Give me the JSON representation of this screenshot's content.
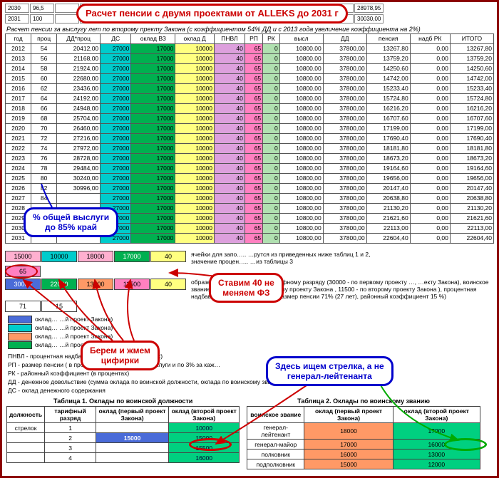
{
  "colors": {
    "dc_col": "#00cccc",
    "okladvz_col": "#00b050",
    "okladd_col": "#ffff80",
    "pnvl_col": "#dda0dd",
    "rp_col": "#ff80c0",
    "rk_col": "#b0e0b0",
    "vysl_col": "#ffffff",
    "dd_col": "#ffffff",
    "input_green": "#00b050",
    "input_cyan": "#00cccc",
    "input_pink": "#ffb0d0",
    "input_yellow": "#ffff80",
    "ref_blue": "#4a6bd8",
    "ref_green": "#00b050",
    "ref_orange": "#ff9966",
    "ref_pink": "#ff80c0"
  },
  "top_cells": [
    "2030",
    "96,5",
    "",
    "",
    "",
    "",
    "",
    "",
    "",
    "",
    "",
    "",
    "",
    "00",
    "28978,95"
  ],
  "top_cells2": [
    "2031",
    "100",
    "",
    "",
    "",
    "",
    "",
    "",
    "",
    "",
    "",
    "",
    "",
    "00",
    "30030,00"
  ],
  "subtitle": "Расчет пенсии за выслугу лет по второму пректу Закона (с коэффициентом 54% ДД и с 2013 года увеличение коэффициента на 2%)",
  "headers": [
    "год",
    "проц",
    "ДД*проц",
    "ДС",
    "оклад ВЗ",
    "оклад Д",
    "ПНВЛ",
    "РП",
    "РК",
    "высл",
    "ДД",
    "пенсия",
    "надб РК",
    "ИТОГО"
  ],
  "rows": [
    {
      "y": "2012",
      "p": "54",
      "dp": "20412,00",
      "dc": "27000",
      "vz": "17000",
      "od": "10000",
      "pn": "40",
      "rp": "65",
      "rk": "0",
      "vy": "10800,00",
      "dd": "37800,00",
      "pe": "13267,80",
      "nr": "0,00",
      "it": "13267,80"
    },
    {
      "y": "2013",
      "p": "56",
      "dp": "21168,00",
      "dc": "27000",
      "vz": "17000",
      "od": "10000",
      "pn": "40",
      "rp": "65",
      "rk": "0",
      "vy": "10800,00",
      "dd": "37800,00",
      "pe": "13759,20",
      "nr": "0,00",
      "it": "13759,20"
    },
    {
      "y": "2014",
      "p": "58",
      "dp": "21924,00",
      "dc": "27000",
      "vz": "17000",
      "od": "10000",
      "pn": "40",
      "rp": "65",
      "rk": "0",
      "vy": "10800,00",
      "dd": "37800,00",
      "pe": "14250,60",
      "nr": "0,00",
      "it": "14250,60"
    },
    {
      "y": "2015",
      "p": "60",
      "dp": "22680,00",
      "dc": "27000",
      "vz": "17000",
      "od": "10000",
      "pn": "40",
      "rp": "65",
      "rk": "0",
      "vy": "10800,00",
      "dd": "37800,00",
      "pe": "14742,00",
      "nr": "0,00",
      "it": "14742,00"
    },
    {
      "y": "2016",
      "p": "62",
      "dp": "23436,00",
      "dc": "27000",
      "vz": "17000",
      "od": "10000",
      "pn": "40",
      "rp": "65",
      "rk": "0",
      "vy": "10800,00",
      "dd": "37800,00",
      "pe": "15233,40",
      "nr": "0,00",
      "it": "15233,40"
    },
    {
      "y": "2017",
      "p": "64",
      "dp": "24192,00",
      "dc": "27000",
      "vz": "17000",
      "od": "10000",
      "pn": "40",
      "rp": "65",
      "rk": "0",
      "vy": "10800,00",
      "dd": "37800,00",
      "pe": "15724,80",
      "nr": "0,00",
      "it": "15724,80"
    },
    {
      "y": "2018",
      "p": "66",
      "dp": "24948,00",
      "dc": "27000",
      "vz": "17000",
      "od": "10000",
      "pn": "40",
      "rp": "65",
      "rk": "0",
      "vy": "10800,00",
      "dd": "37800,00",
      "pe": "16216,20",
      "nr": "0,00",
      "it": "16216,20"
    },
    {
      "y": "2019",
      "p": "68",
      "dp": "25704,00",
      "dc": "27000",
      "vz": "17000",
      "od": "10000",
      "pn": "40",
      "rp": "65",
      "rk": "0",
      "vy": "10800,00",
      "dd": "37800,00",
      "pe": "16707,60",
      "nr": "0,00",
      "it": "16707,60"
    },
    {
      "y": "2020",
      "p": "70",
      "dp": "26460,00",
      "dc": "27000",
      "vz": "17000",
      "od": "10000",
      "pn": "40",
      "rp": "65",
      "rk": "0",
      "vy": "10800,00",
      "dd": "37800,00",
      "pe": "17199,00",
      "nr": "0,00",
      "it": "17199,00"
    },
    {
      "y": "2021",
      "p": "72",
      "dp": "27216,00",
      "dc": "27000",
      "vz": "17000",
      "od": "10000",
      "pn": "40",
      "rp": "65",
      "rk": "0",
      "vy": "10800,00",
      "dd": "37800,00",
      "pe": "17690,40",
      "nr": "0,00",
      "it": "17690,40"
    },
    {
      "y": "2022",
      "p": "74",
      "dp": "27972,00",
      "dc": "27000",
      "vz": "17000",
      "od": "10000",
      "pn": "40",
      "rp": "65",
      "rk": "0",
      "vy": "10800,00",
      "dd": "37800,00",
      "pe": "18181,80",
      "nr": "0,00",
      "it": "18181,80"
    },
    {
      "y": "2023",
      "p": "76",
      "dp": "28728,00",
      "dc": "27000",
      "vz": "17000",
      "od": "10000",
      "pn": "40",
      "rp": "65",
      "rk": "0",
      "vy": "10800,00",
      "dd": "37800,00",
      "pe": "18673,20",
      "nr": "0,00",
      "it": "18673,20"
    },
    {
      "y": "2024",
      "p": "78",
      "dp": "29484,00",
      "dc": "27000",
      "vz": "17000",
      "od": "10000",
      "pn": "40",
      "rp": "65",
      "rk": "0",
      "vy": "10800,00",
      "dd": "37800,00",
      "pe": "19164,60",
      "nr": "0,00",
      "it": "19164,60"
    },
    {
      "y": "2025",
      "p": "80",
      "dp": "30240,00",
      "dc": "27000",
      "vz": "17000",
      "od": "10000",
      "pn": "40",
      "rp": "65",
      "rk": "0",
      "vy": "10800,00",
      "dd": "37800,00",
      "pe": "19656,00",
      "nr": "0,00",
      "it": "19656,00"
    },
    {
      "y": "2026",
      "p": "82",
      "dp": "30996,00",
      "dc": "27000",
      "vz": "17000",
      "od": "10000",
      "pn": "40",
      "rp": "65",
      "rk": "0",
      "vy": "10800,00",
      "dd": "37800,00",
      "pe": "20147,40",
      "nr": "0,00",
      "it": "20147,40"
    },
    {
      "y": "2027",
      "p": "84",
      "dp": "",
      "dc": "27000",
      "vz": "17000",
      "od": "10000",
      "pn": "40",
      "rp": "65",
      "rk": "0",
      "vy": "10800,00",
      "dd": "37800,00",
      "pe": "20638,80",
      "nr": "0,00",
      "it": "20638,80"
    },
    {
      "y": "2028",
      "p": "",
      "dp": "",
      "dc": "27000",
      "vz": "17000",
      "od": "10000",
      "pn": "40",
      "rp": "65",
      "rk": "0",
      "vy": "10800,00",
      "dd": "37800,00",
      "pe": "21130,20",
      "nr": "0,00",
      "it": "21130,20"
    },
    {
      "y": "2029",
      "p": "",
      "dp": "",
      "dc": "27000",
      "vz": "17000",
      "od": "10000",
      "pn": "40",
      "rp": "65",
      "rk": "0",
      "vy": "10800,00",
      "dd": "37800,00",
      "pe": "21621,60",
      "nr": "0,00",
      "it": "21621,60"
    },
    {
      "y": "2030",
      "p": "",
      "dp": "",
      "dc": "27000",
      "vz": "17000",
      "od": "10000",
      "pn": "40",
      "rp": "65",
      "rk": "0",
      "vy": "10800,00",
      "dd": "37800,00",
      "pe": "22113,00",
      "nr": "0,00",
      "it": "22113,00"
    },
    {
      "y": "2031",
      "p": "",
      "dp": "",
      "dc": "27000",
      "vz": "17000",
      "od": "10000",
      "pn": "40",
      "rp": "65",
      "rk": "0",
      "vy": "10800,00",
      "dd": "37800,00",
      "pe": "22604,40",
      "nr": "0,00",
      "it": "22604,40"
    }
  ],
  "bubble_title": "Расчет пенсии с двумя проектами от ALLEKS до 2031 г",
  "bubble_percent_line1": "% общей выслуги",
  "bubble_percent_line2": "до 85% край",
  "bubble_stavim_line1": "Ставим 40 не",
  "bubble_stavim_line2": "меняем ФЗ",
  "bubble_berem_line1": "Берем и жмем",
  "bubble_berem_line2": "цифирки",
  "bubble_arrow_line1": "Здесь ищем стрелка, а не",
  "bubble_arrow_line2": "генерал-лейтенанта",
  "inputs_row1": [
    {
      "v": "15000",
      "bg": "#ffb0d0"
    },
    {
      "v": "10000",
      "bg": "#00cccc"
    },
    {
      "v": "18000",
      "bg": "#ffb0d0"
    },
    {
      "v": "17000",
      "bg": "#00b050"
    },
    {
      "v": "40",
      "bg": "#ffff80"
    }
  ],
  "inputs_side_text": "ячейки для запо….. …рутся из приведенных ниже таблиц 1 и 2,",
  "inputs_side_text2": "значение процен….. …из таблицы 3",
  "inputs_row1b": [
    {
      "v": "65",
      "bg": "#ff80c0"
    }
  ],
  "inputs_row2": [
    {
      "v": "30000",
      "bg": "#4a6bd8"
    },
    {
      "v": "22000",
      "bg": "#00b050"
    },
    {
      "v": "13000",
      "bg": "#ff9966"
    },
    {
      "v": "11500",
      "bg": "#ff80c0"
    },
    {
      "v": "40",
      "bg": "#ffff80"
    }
  ],
  "inputs_row2b": [
    {
      "v": "71",
      "bg": "#ffffff"
    },
    {
      "v": "15",
      "bg": "#ffffff"
    }
  ],
  "example_text": "образец запол… …асно 14 тарифному разряду (30000 - по первому проекту …, …екту Закона), воинское звание майор (13000 - по первому проекту Закона , 11500 - по второму проекту Закона ), процентная надбавка за выслугу лет 40%, размер пенсии 71% (27 лет), районный коэффициент 15 %)",
  "legend": [
    {
      "c": "#4a6bd8",
      "t": "оклад… …й проект Закона)"
    },
    {
      "c": "#00cccc",
      "t": "оклад… …й проект Закона)"
    },
    {
      "c": "#ff9966",
      "t": "оклад… …й проект Закона)"
    },
    {
      "c": "#00b050",
      "t": "оклад… …й проект Закона)"
    }
  ],
  "legend_text": [
    "ПНВЛ - процентная надбавка за выслугу (в процентах)",
    "РП - размер пенсии ( в процентах) 50% за 20 лет выслуги и по 3% за каж…",
    "РК - районный коэффициент (в процентах)",
    "ДД - денежное довольствие (сумма оклада по воинской должности, оклада по воинскому званию и процентной надбавки за выслугу",
    "ДС - оклад денежного содержания"
  ],
  "table1_title": "Таблица 1. Оклады по воинской должности",
  "table1_headers": [
    "должность",
    "тарифный разряд",
    "оклад (первый проект Закона)",
    "оклад (второй проект Закона)"
  ],
  "table1_rows": [
    [
      "стрелок",
      "1",
      "",
      "10000"
    ],
    [
      "",
      "2",
      "15000",
      "15000"
    ],
    [
      "",
      "3",
      "",
      "15500"
    ],
    [
      "",
      "4",
      "",
      "16000"
    ]
  ],
  "table2_title": "Таблица 2. Оклады по воинскому званию",
  "table2_headers": [
    "воинское звание",
    "оклад (первый проект Закона)",
    "оклад (второй проект Закона)"
  ],
  "table2_rows": [
    [
      "генерал-лейтенант",
      "18000",
      "17000"
    ],
    [
      "генерал-майор",
      "17000",
      "16000"
    ],
    [
      "полковник",
      "16000",
      "13000"
    ],
    [
      "подполковник",
      "15000",
      "12000"
    ]
  ]
}
